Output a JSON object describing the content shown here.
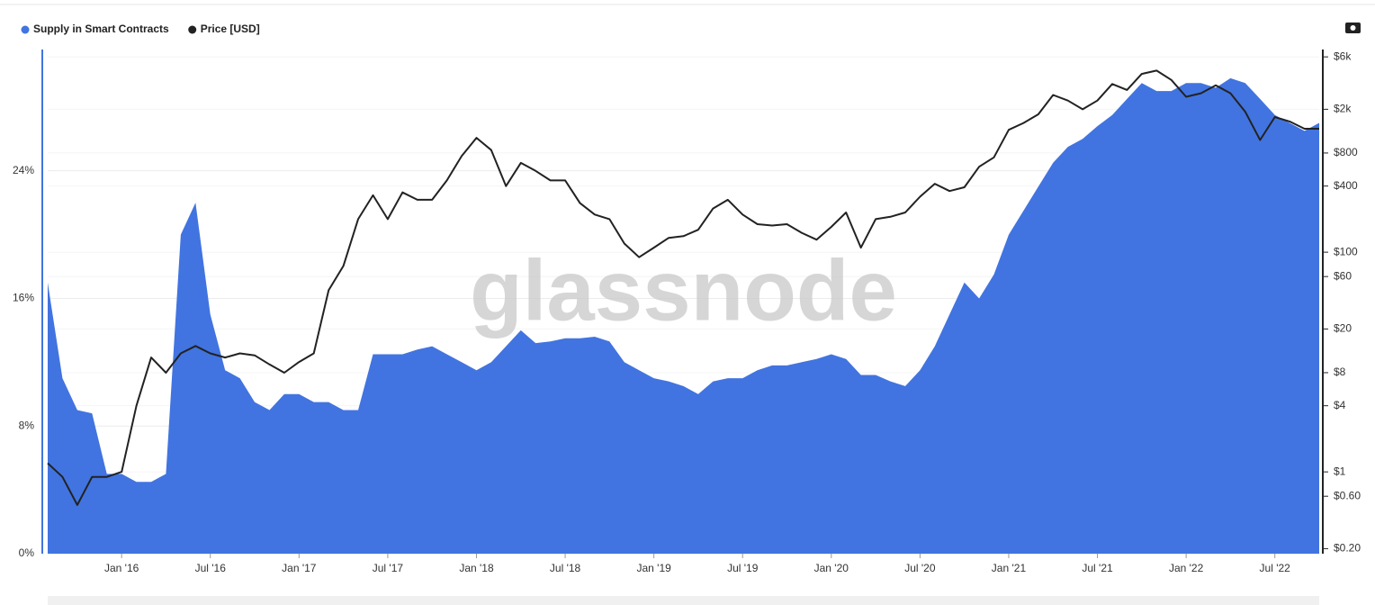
{
  "chart_data": {
    "type": "area_line",
    "watermark": "glassnode",
    "x": [
      "2015-08",
      "2015-09",
      "2015-10",
      "2015-11",
      "2015-12",
      "2016-01",
      "2016-02",
      "2016-03",
      "2016-04",
      "2016-05",
      "2016-06",
      "2016-07",
      "2016-08",
      "2016-09",
      "2016-10",
      "2016-11",
      "2016-12",
      "2017-01",
      "2017-02",
      "2017-03",
      "2017-04",
      "2017-05",
      "2017-06",
      "2017-07",
      "2017-08",
      "2017-09",
      "2017-10",
      "2017-11",
      "2017-12",
      "2018-01",
      "2018-02",
      "2018-03",
      "2018-04",
      "2018-05",
      "2018-06",
      "2018-07",
      "2018-08",
      "2018-09",
      "2018-10",
      "2018-11",
      "2018-12",
      "2019-01",
      "2019-02",
      "2019-03",
      "2019-04",
      "2019-05",
      "2019-06",
      "2019-07",
      "2019-08",
      "2019-09",
      "2019-10",
      "2019-11",
      "2019-12",
      "2020-01",
      "2020-02",
      "2020-03",
      "2020-04",
      "2020-05",
      "2020-06",
      "2020-07",
      "2020-08",
      "2020-09",
      "2020-10",
      "2020-11",
      "2020-12",
      "2021-01",
      "2021-02",
      "2021-03",
      "2021-04",
      "2021-05",
      "2021-06",
      "2021-07",
      "2021-08",
      "2021-09",
      "2021-10",
      "2021-11",
      "2021-12",
      "2022-01",
      "2022-02",
      "2022-03",
      "2022-04",
      "2022-05",
      "2022-06",
      "2022-07",
      "2022-08",
      "2022-09",
      "2022-10"
    ],
    "series": [
      {
        "name": "Supply in Smart Contracts",
        "color": "#4174e0",
        "axis": "y",
        "values": [
          17,
          11,
          9,
          8.8,
          5,
          5,
          4.5,
          4.5,
          5,
          20,
          22,
          15,
          11.5,
          11,
          9.5,
          9,
          10,
          10,
          9.5,
          9.5,
          9,
          9,
          12.5,
          12.5,
          12.5,
          12.8,
          13,
          12.5,
          12,
          11.5,
          12,
          13,
          14,
          13.2,
          13.3,
          13.5,
          13.5,
          13.6,
          13.3,
          12,
          11.5,
          11,
          10.8,
          10.5,
          10,
          10.8,
          11,
          11,
          11.5,
          11.8,
          11.8,
          12,
          12.2,
          12.5,
          12.2,
          11.2,
          11.2,
          10.8,
          10.5,
          11.5,
          13,
          15,
          17,
          16,
          17.5,
          20,
          21.5,
          23,
          24.5,
          25.5,
          26,
          26.8,
          27.5,
          28.5,
          29.5,
          29,
          29,
          29.5,
          29.5,
          29.2,
          29.8,
          29.5,
          28.5,
          27.5,
          27,
          26.5,
          27
        ]
      },
      {
        "name": "Price [USD]",
        "color": "#222222",
        "axis": "y2",
        "values": [
          1.2,
          0.9,
          0.5,
          0.9,
          0.9,
          1,
          4,
          11,
          8,
          12,
          14,
          12,
          11,
          12,
          11.5,
          9.5,
          8,
          10,
          12,
          45,
          75,
          200,
          330,
          200,
          350,
          300,
          300,
          450,
          750,
          1100,
          850,
          400,
          650,
          550,
          450,
          450,
          280,
          220,
          200,
          120,
          90,
          110,
          135,
          140,
          160,
          250,
          300,
          220,
          180,
          175,
          180,
          150,
          130,
          170,
          230,
          110,
          200,
          210,
          230,
          320,
          420,
          360,
          390,
          600,
          730,
          1300,
          1500,
          1800,
          2700,
          2400,
          2000,
          2400,
          3400,
          3000,
          4200,
          4500,
          3700,
          2600,
          2800,
          3300,
          2800,
          1900,
          1050,
          1700,
          1550,
          1330,
          1330
        ]
      }
    ],
    "xlim": [
      "2015-08",
      "2022-10"
    ],
    "xticks": [
      {
        "value": "2016-01",
        "label": "Jan '16"
      },
      {
        "value": "2016-07",
        "label": "Jul '16"
      },
      {
        "value": "2017-01",
        "label": "Jan '17"
      },
      {
        "value": "2017-07",
        "label": "Jul '17"
      },
      {
        "value": "2018-01",
        "label": "Jan '18"
      },
      {
        "value": "2018-07",
        "label": "Jul '18"
      },
      {
        "value": "2019-01",
        "label": "Jan '19"
      },
      {
        "value": "2019-07",
        "label": "Jul '19"
      },
      {
        "value": "2020-01",
        "label": "Jan '20"
      },
      {
        "value": "2020-07",
        "label": "Jul '20"
      },
      {
        "value": "2021-01",
        "label": "Jan '21"
      },
      {
        "value": "2021-07",
        "label": "Jul '21"
      },
      {
        "value": "2022-01",
        "label": "Jan '22"
      },
      {
        "value": "2022-07",
        "label": "Jul '22"
      }
    ],
    "ylim": [
      0,
      31.6
    ],
    "yticks": [
      {
        "value": 0,
        "label": "0%"
      },
      {
        "value": 8,
        "label": "8%"
      },
      {
        "value": 16,
        "label": "16%"
      },
      {
        "value": 24,
        "label": "24%"
      }
    ],
    "y2lim": [
      0.18,
      7000
    ],
    "y2log": true,
    "y2ticks": [
      {
        "value": 0.2,
        "label": "$0.20"
      },
      {
        "value": 0.6,
        "label": "$0.60"
      },
      {
        "value": 1,
        "label": "$1"
      },
      {
        "value": 4,
        "label": "$4"
      },
      {
        "value": 8,
        "label": "$8"
      },
      {
        "value": 20,
        "label": "$20"
      },
      {
        "value": 60,
        "label": "$60"
      },
      {
        "value": 100,
        "label": "$100"
      },
      {
        "value": 400,
        "label": "$400"
      },
      {
        "value": 800,
        "label": "$800"
      },
      {
        "value": 2000,
        "label": "$2k"
      },
      {
        "value": 6000,
        "label": "$6k"
      }
    ],
    "grid": true,
    "legend": "top-left"
  }
}
